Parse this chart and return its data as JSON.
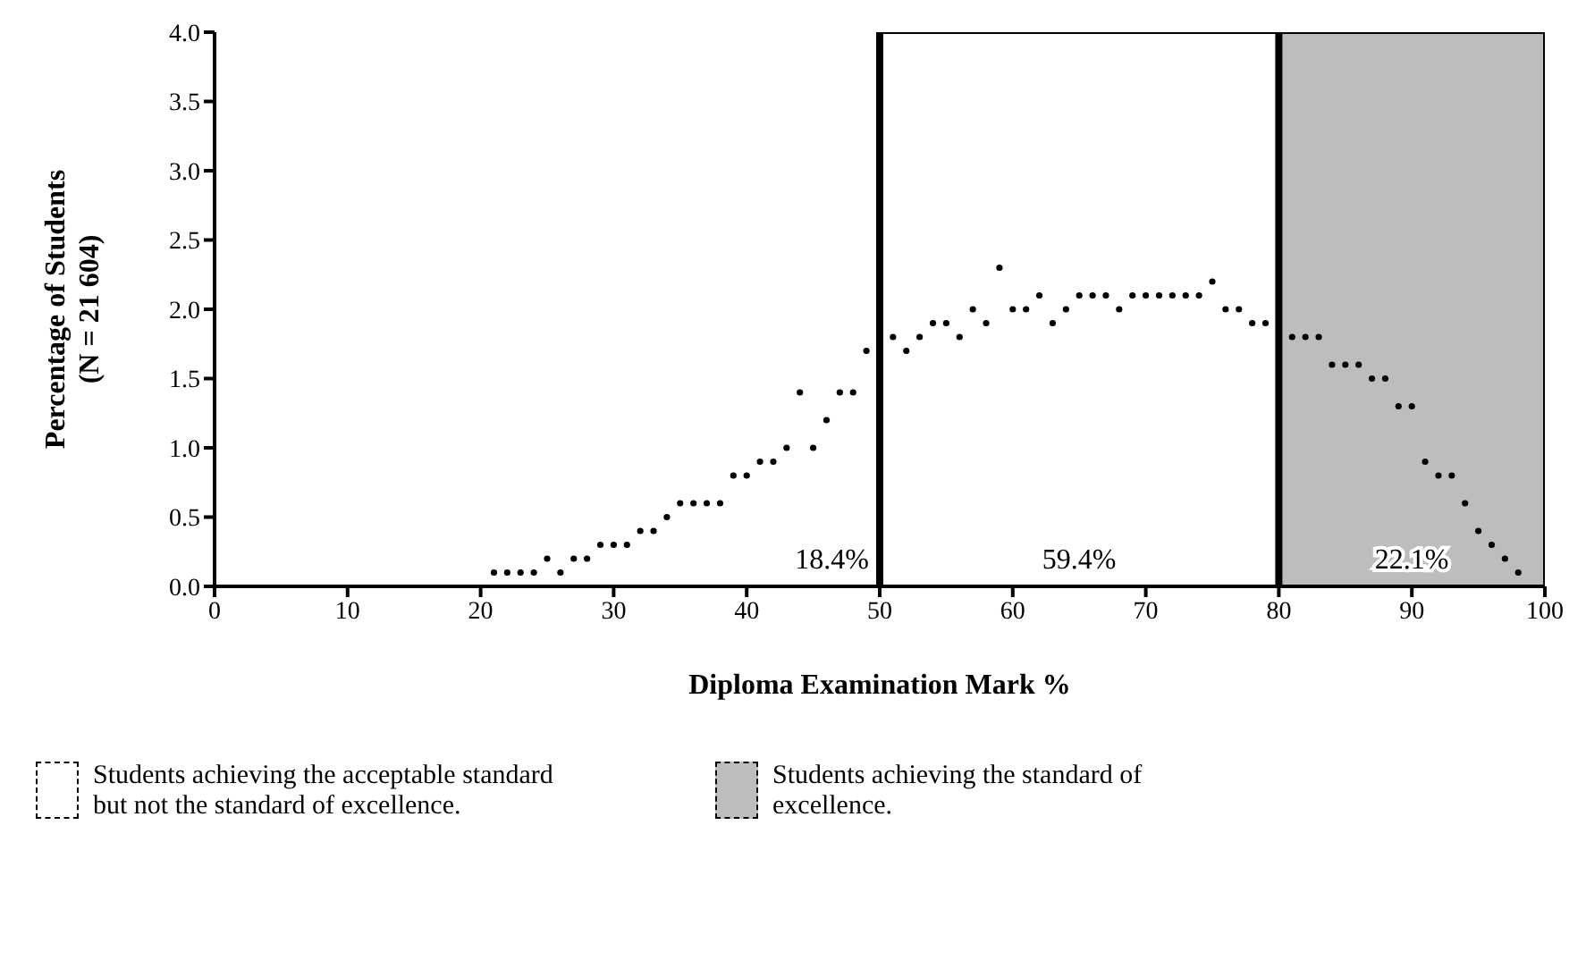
{
  "chart_data": {
    "type": "scatter",
    "xlabel": "Diploma Examination Mark %",
    "ylabel": "Percentage of Students\n(N = 21 604)",
    "x": [
      21,
      22,
      23,
      24,
      25,
      26,
      27,
      28,
      29,
      30,
      31,
      32,
      33,
      34,
      35,
      36,
      37,
      38,
      39,
      40,
      41,
      42,
      43,
      44,
      45,
      46,
      47,
      48,
      49,
      51,
      52,
      53,
      54,
      55,
      56,
      57,
      58,
      59,
      60,
      61,
      62,
      63,
      64,
      65,
      66,
      67,
      68,
      69,
      70,
      71,
      72,
      73,
      74,
      75,
      76,
      77,
      78,
      79,
      81,
      82,
      83,
      84,
      85,
      86,
      87,
      88,
      89,
      90,
      91,
      92,
      93,
      94,
      95,
      96,
      97,
      98
    ],
    "values": [
      0.1,
      0.1,
      0.1,
      0.1,
      0.2,
      0.1,
      0.2,
      0.2,
      0.3,
      0.3,
      0.3,
      0.4,
      0.4,
      0.5,
      0.6,
      0.6,
      0.6,
      0.6,
      0.8,
      0.8,
      0.9,
      0.9,
      1.0,
      1.4,
      1.0,
      1.2,
      1.4,
      1.4,
      1.7,
      1.8,
      1.7,
      1.8,
      1.9,
      1.9,
      1.8,
      2.0,
      1.9,
      2.3,
      2.0,
      2.0,
      2.1,
      1.9,
      2.0,
      2.1,
      2.1,
      2.1,
      2.0,
      2.1,
      2.1,
      2.1,
      2.1,
      2.1,
      2.1,
      2.2,
      2.0,
      2.0,
      1.9,
      1.9,
      1.8,
      1.8,
      1.8,
      1.6,
      1.6,
      1.6,
      1.5,
      1.5,
      1.3,
      1.3,
      0.9,
      0.8,
      0.8,
      0.6,
      0.4,
      0.3,
      0.2,
      0.1
    ],
    "color": "#000000",
    "marker": "circle",
    "xlim": [
      0,
      100
    ],
    "xticks": [
      0,
      10,
      20,
      30,
      40,
      50,
      60,
      70,
      80,
      90,
      100
    ],
    "ylim": [
      0,
      4
    ],
    "yticks": [
      {
        "value": 0,
        "label": "0.0"
      },
      {
        "value": 0.5,
        "label": "0.5"
      },
      {
        "value": 1,
        "label": "1.0"
      },
      {
        "value": 1.5,
        "label": "1.5"
      },
      {
        "value": 2,
        "label": "2.0"
      },
      {
        "value": 2.5,
        "label": "2.5"
      },
      {
        "value": 3,
        "label": "3.0"
      },
      {
        "value": 3.5,
        "label": "3.5"
      },
      {
        "value": 4,
        "label": "4.0"
      }
    ],
    "bands": [
      {
        "axis": "x",
        "from": 50,
        "to": 80,
        "label": "Students achieving the acceptable standard but not the standard of excellence.",
        "color": "#ffffff"
      },
      {
        "axis": "x",
        "from": 80,
        "to": 100,
        "label": "Students achieving the standard of excellence.",
        "color": "#bdbdbd"
      }
    ],
    "ref_lines": [
      {
        "axis": "x",
        "value": 50,
        "color": "#000000"
      },
      {
        "axis": "x",
        "value": 80,
        "color": "#000000"
      }
    ],
    "annotations": [
      "18.4%",
      "59.4%",
      "22.1%"
    ],
    "legend": "bottom",
    "grid": false
  }
}
